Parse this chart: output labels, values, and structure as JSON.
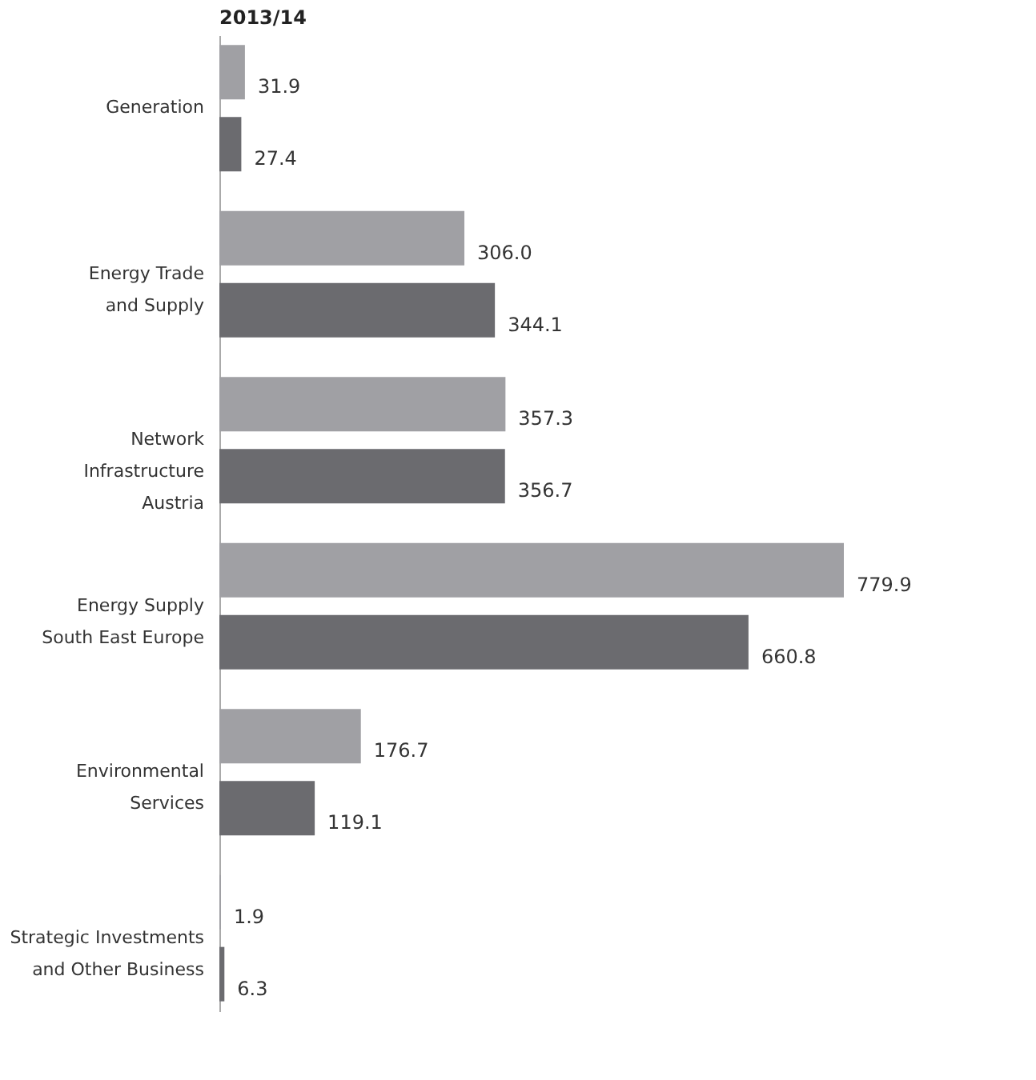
{
  "chart_data": {
    "type": "bar",
    "orientation": "horizontal",
    "title": "2013/14",
    "categories": [
      "Generation",
      "Energy Trade\nand Supply",
      "Network\nInfrastructure\nAustria",
      "Energy Supply\nSouth East Europe",
      "Environmental\nServices",
      "Strategic Investments\nand Other Business"
    ],
    "series": [
      {
        "color": "#a0a0a4",
        "values": [
          31.9,
          306.0,
          357.3,
          779.9,
          176.7,
          1.9
        ],
        "value_labels": [
          "31.9",
          "306.0",
          "357.3",
          "779.9",
          "176.7",
          "1.9"
        ]
      },
      {
        "color": "#6b6b6f",
        "values": [
          27.4,
          344.1,
          356.7,
          660.8,
          119.1,
          6.3
        ],
        "value_labels": [
          "27.4",
          "344.1",
          "356.7",
          "660.8",
          "119.1",
          "6.3"
        ]
      }
    ],
    "legend": false
  }
}
